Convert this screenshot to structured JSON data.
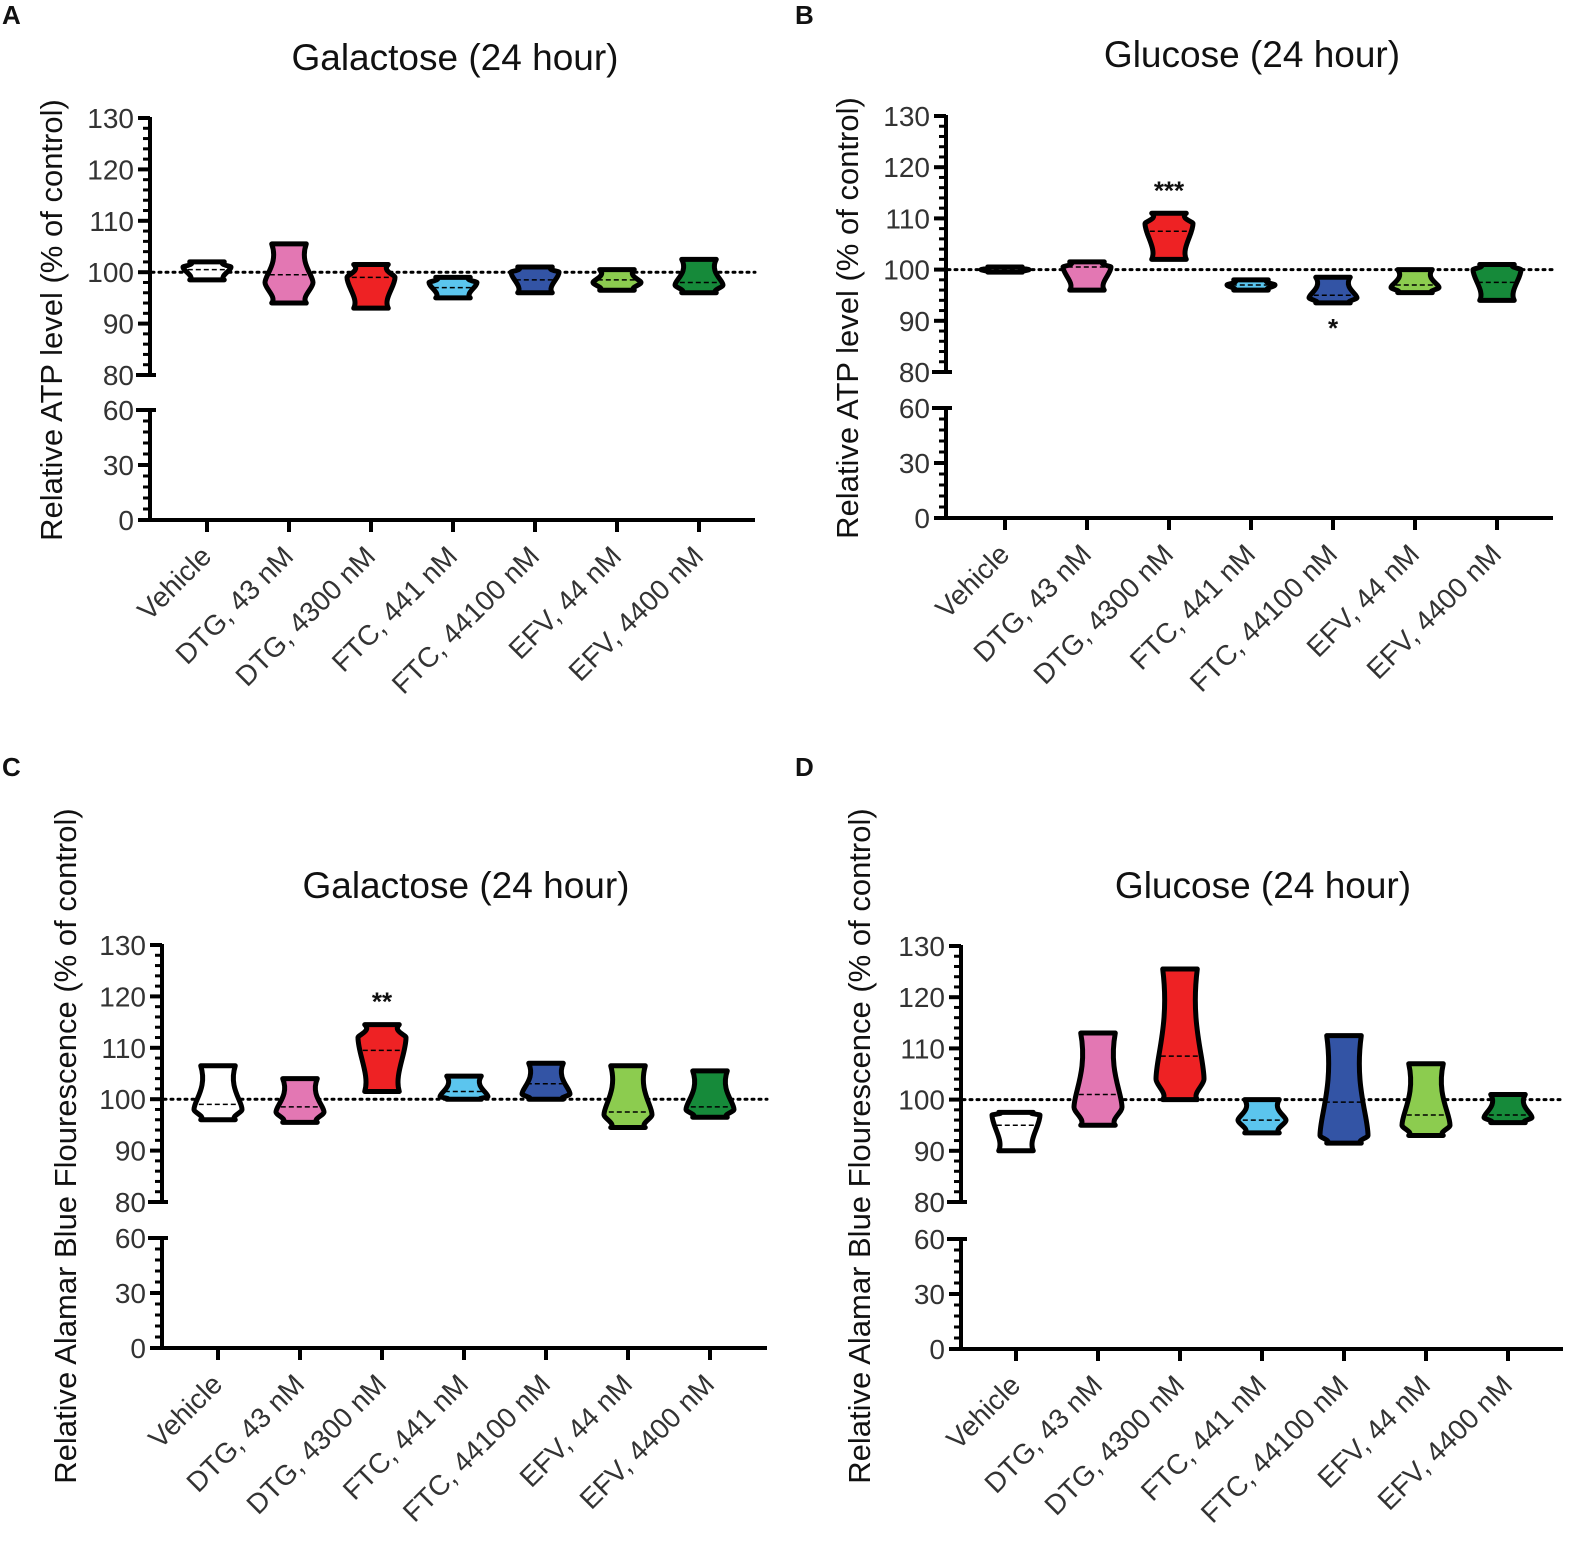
{
  "chart_data": [
    {
      "panel": "A",
      "type": "violin",
      "title": "Galactose (24 hour)",
      "ylabel": "Relative ATP level (% of control)",
      "ylim": [
        0,
        130
      ],
      "axis_break": [
        60,
        80
      ],
      "yticks_upper": [
        "80",
        "90",
        "100",
        "110",
        "120",
        "130"
      ],
      "yticks_lower": [
        "0",
        "30",
        "60"
      ],
      "reference_line": 100,
      "categories": [
        "Vehicle",
        "DTG, 43 nM",
        "DTG, 4300 nM",
        "FTC, 441 nM",
        "FTC, 44100 nM",
        "EFV, 44 nM",
        "EFV, 4400 nM"
      ],
      "series": [
        {
          "name": "Vehicle",
          "color": "#ffffff",
          "min": 98.5,
          "max": 102,
          "median": 100.5,
          "widest": 101,
          "significance": ""
        },
        {
          "name": "DTG, 43 nM",
          "color": "#e377b3",
          "min": 94,
          "max": 105.5,
          "median": 99.5,
          "widest": 98,
          "significance": ""
        },
        {
          "name": "DTG, 4300 nM",
          "color": "#ee2224",
          "min": 93,
          "max": 101.5,
          "median": 99,
          "widest": 99,
          "significance": ""
        },
        {
          "name": "FTC, 441 nM",
          "color": "#5bc5ee",
          "min": 95,
          "max": 99,
          "median": 97,
          "widest": 98,
          "significance": ""
        },
        {
          "name": "FTC, 44100 nM",
          "color": "#3354a5",
          "min": 96,
          "max": 101,
          "median": 98.5,
          "widest": 100,
          "significance": ""
        },
        {
          "name": "EFV, 44 nM",
          "color": "#8ccc4f",
          "min": 96.5,
          "max": 100.5,
          "median": 98.5,
          "widest": 98,
          "significance": ""
        },
        {
          "name": "EFV, 4400 nM",
          "color": "#168a3a",
          "min": 96,
          "max": 102.5,
          "median": 98,
          "widest": 97.5,
          "significance": ""
        }
      ]
    },
    {
      "panel": "B",
      "type": "violin",
      "title": "Glucose (24 hour)",
      "ylabel": "Relative ATP level (% of control)",
      "ylim": [
        0,
        130
      ],
      "axis_break": [
        60,
        80
      ],
      "yticks_upper": [
        "80",
        "90",
        "100",
        "110",
        "120",
        "130"
      ],
      "yticks_lower": [
        "0",
        "30",
        "60"
      ],
      "reference_line": 100,
      "categories": [
        "Vehicle",
        "DTG, 43 nM",
        "DTG, 4300 nM",
        "FTC, 441 nM",
        "FTC, 44100 nM",
        "EFV, 44 nM",
        "EFV, 4400 nM"
      ],
      "series": [
        {
          "name": "Vehicle",
          "color": "#ffffff",
          "min": 99.5,
          "max": 100.5,
          "median": 100,
          "widest": 100,
          "significance": ""
        },
        {
          "name": "DTG, 43 nM",
          "color": "#e377b3",
          "min": 96,
          "max": 101.5,
          "median": 100.5,
          "widest": 100.5,
          "significance": ""
        },
        {
          "name": "DTG, 4300 nM",
          "color": "#ee2224",
          "min": 102,
          "max": 111,
          "median": 107.5,
          "widest": 109,
          "significance": "***"
        },
        {
          "name": "FTC, 441 nM",
          "color": "#5bc5ee",
          "min": 96,
          "max": 98,
          "median": 97,
          "widest": 97,
          "significance": ""
        },
        {
          "name": "FTC, 44100 nM",
          "color": "#3354a5",
          "min": 93.5,
          "max": 98.5,
          "median": 95,
          "widest": 94.5,
          "significance": "*"
        },
        {
          "name": "EFV, 44 nM",
          "color": "#8ccc4f",
          "min": 95.5,
          "max": 100,
          "median": 97,
          "widest": 96.5,
          "significance": ""
        },
        {
          "name": "EFV, 4400 nM",
          "color": "#168a3a",
          "min": 94,
          "max": 101,
          "median": 97.5,
          "widest": 100,
          "significance": ""
        }
      ]
    },
    {
      "panel": "C",
      "type": "violin",
      "title": "Galactose (24 hour)",
      "ylabel": "Relative Alamar Blue Flourescence (% of control)",
      "ylim": [
        0,
        130
      ],
      "axis_break": [
        60,
        80
      ],
      "yticks_upper": [
        "80",
        "90",
        "100",
        "110",
        "120",
        "130"
      ],
      "yticks_lower": [
        "0",
        "30",
        "60"
      ],
      "reference_line": 100,
      "categories": [
        "Vehicle",
        "DTG, 43 nM",
        "DTG, 4300 nM",
        "FTC, 441 nM",
        "FTC, 44100 nM",
        "EFV, 44 nM",
        "EFV, 4400 nM"
      ],
      "series": [
        {
          "name": "Vehicle",
          "color": "#ffffff",
          "min": 96,
          "max": 106.5,
          "median": 99,
          "widest": 98,
          "significance": ""
        },
        {
          "name": "DTG, 43 nM",
          "color": "#e377b3",
          "min": 95.5,
          "max": 104,
          "median": 98.5,
          "widest": 97.5,
          "significance": ""
        },
        {
          "name": "DTG, 4300 nM",
          "color": "#ee2224",
          "min": 101.5,
          "max": 114.5,
          "median": 109.5,
          "widest": 112,
          "significance": "**"
        },
        {
          "name": "FTC, 441 nM",
          "color": "#5bc5ee",
          "min": 100,
          "max": 104.5,
          "median": 101.5,
          "widest": 100.5,
          "significance": ""
        },
        {
          "name": "FTC, 44100 nM",
          "color": "#3354a5",
          "min": 100,
          "max": 107,
          "median": 103,
          "widest": 101,
          "significance": ""
        },
        {
          "name": "EFV, 44 nM",
          "color": "#8ccc4f",
          "min": 94.5,
          "max": 106.5,
          "median": 97.5,
          "widest": 97,
          "significance": ""
        },
        {
          "name": "EFV, 4400 nM",
          "color": "#168a3a",
          "min": 96.5,
          "max": 105.5,
          "median": 98.5,
          "widest": 98,
          "significance": ""
        }
      ]
    },
    {
      "panel": "D",
      "type": "violin",
      "title": "Glucose (24 hour)",
      "ylabel": "Relative Alamar Blue Flourescence (% of control)",
      "ylim": [
        0,
        130
      ],
      "axis_break": [
        60,
        80
      ],
      "yticks_upper": [
        "80",
        "90",
        "100",
        "110",
        "120",
        "130"
      ],
      "yticks_lower": [
        "0",
        "30",
        "60"
      ],
      "reference_line": 100,
      "categories": [
        "Vehicle",
        "DTG, 43 nM",
        "DTG, 4300 nM",
        "FTC, 441 nM",
        "FTC, 44100 nM",
        "EFV, 44 nM",
        "EFV, 4400 nM"
      ],
      "series": [
        {
          "name": "Vehicle",
          "color": "#ffffff",
          "min": 90,
          "max": 97.5,
          "median": 95,
          "widest": 97,
          "significance": ""
        },
        {
          "name": "DTG, 43 nM",
          "color": "#e377b3",
          "min": 95,
          "max": 113,
          "median": 101,
          "widest": 98.5,
          "significance": ""
        },
        {
          "name": "DTG, 4300 nM",
          "color": "#ee2224",
          "min": 100,
          "max": 125.5,
          "median": 108.5,
          "widest": 104,
          "significance": ""
        },
        {
          "name": "FTC, 441 nM",
          "color": "#5bc5ee",
          "min": 93.5,
          "max": 100,
          "median": 96,
          "widest": 96,
          "significance": ""
        },
        {
          "name": "FTC, 44100 nM",
          "color": "#3354a5",
          "min": 91.5,
          "max": 112.5,
          "median": 99.5,
          "widest": 93,
          "significance": ""
        },
        {
          "name": "EFV, 44 nM",
          "color": "#8ccc4f",
          "min": 93,
          "max": 107,
          "median": 97,
          "widest": 95,
          "significance": ""
        },
        {
          "name": "EFV, 4400 nM",
          "color": "#168a3a",
          "min": 95.5,
          "max": 101,
          "median": 97,
          "widest": 96.5,
          "significance": ""
        }
      ]
    }
  ]
}
